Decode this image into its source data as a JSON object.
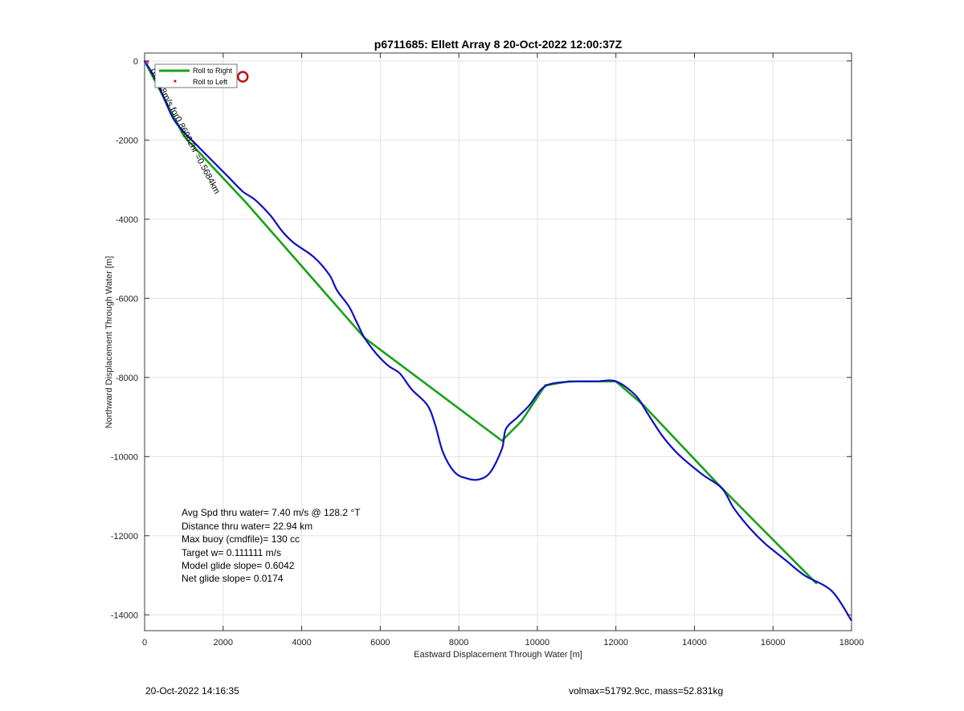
{
  "figure": {
    "footer_left": "20-Oct-2022 14:16:35",
    "footer_right": "volmax=51792.9cc, mass=52.831kg"
  },
  "chart_data": {
    "type": "line",
    "title": "p6711685: Ellett Array 8 20-Oct-2022 12:00:37Z",
    "xlabel": "Eastward Displacement Through Water [m]",
    "ylabel": "Northward Displacement Through Water [m]",
    "xlim": [
      0,
      18000
    ],
    "ylim": [
      -14400,
      200
    ],
    "xticks": [
      0,
      2000,
      4000,
      6000,
      8000,
      10000,
      12000,
      14000,
      16000,
      18000
    ],
    "yticks": [
      0,
      -2000,
      -4000,
      -6000,
      -8000,
      -10000,
      -12000,
      -14000
    ],
    "grid": true,
    "legend_position": "top-left",
    "legend": [
      {
        "label": "Roll to Right",
        "color": "#1aa01a",
        "style": "line"
      },
      {
        "label": "Roll to Left",
        "color": "#dd0000",
        "style": "dot"
      }
    ],
    "series": [
      {
        "color": "#1aa01a",
        "role": "segments",
        "points": [
          [
            0,
            0
          ],
          [
            1000,
            -1900
          ],
          [
            2600,
            -3600
          ],
          [
            5600,
            -7000
          ],
          [
            9100,
            -9600
          ],
          [
            9600,
            -9100
          ],
          [
            10200,
            -8200
          ],
          [
            10800,
            -8100
          ],
          [
            12000,
            -8100
          ],
          [
            12700,
            -8700
          ],
          [
            14700,
            -10800
          ],
          [
            17100,
            -13200
          ]
        ]
      },
      {
        "color": "#1010c0",
        "role": "track",
        "points": [
          [
            0,
            0
          ],
          [
            300,
            -500
          ],
          [
            700,
            -1400
          ],
          [
            1000,
            -1800
          ],
          [
            1300,
            -2100
          ],
          [
            1700,
            -2500
          ],
          [
            2100,
            -2900
          ],
          [
            2500,
            -3300
          ],
          [
            2800,
            -3500
          ],
          [
            3200,
            -3900
          ],
          [
            3500,
            -4300
          ],
          [
            3800,
            -4600
          ],
          [
            4300,
            -4950
          ],
          [
            4700,
            -5400
          ],
          [
            4900,
            -5800
          ],
          [
            5200,
            -6200
          ],
          [
            5400,
            -6600
          ],
          [
            5600,
            -7000
          ],
          [
            5900,
            -7400
          ],
          [
            6200,
            -7700
          ],
          [
            6500,
            -7900
          ],
          [
            6800,
            -8300
          ],
          [
            7200,
            -8700
          ],
          [
            7400,
            -9200
          ],
          [
            7600,
            -9900
          ],
          [
            7900,
            -10400
          ],
          [
            8200,
            -10550
          ],
          [
            8500,
            -10580
          ],
          [
            8800,
            -10400
          ],
          [
            9100,
            -9800
          ],
          [
            9200,
            -9300
          ],
          [
            9500,
            -9000
          ],
          [
            9800,
            -8700
          ],
          [
            10100,
            -8300
          ],
          [
            10400,
            -8150
          ],
          [
            11000,
            -8100
          ],
          [
            11500,
            -8100
          ],
          [
            12000,
            -8100
          ],
          [
            12500,
            -8450
          ],
          [
            12800,
            -8900
          ],
          [
            13200,
            -9500
          ],
          [
            13600,
            -9950
          ],
          [
            14200,
            -10450
          ],
          [
            14700,
            -10800
          ],
          [
            15000,
            -11300
          ],
          [
            15400,
            -11800
          ],
          [
            15800,
            -12200
          ],
          [
            16300,
            -12600
          ],
          [
            16800,
            -13000
          ],
          [
            17500,
            -13400
          ],
          [
            18000,
            -14150
          ]
        ]
      }
    ],
    "roll_left_marker": {
      "x": 2500,
      "y": -400,
      "color": "#c0101a"
    },
    "diagonal_annotation": "0.6938m/s for0.86062hr =0.5684km",
    "stats": [
      "Avg Spd thru water=  7.40 m/s @ 128.2 °T",
      "Distance thru water= 22.94 km",
      "Max buoy (cmdfile)= 130 cc",
      "Target w= 0.111111 m/s",
      "Model glide slope= 0.6042",
      "Net glide slope= 0.0174"
    ]
  }
}
